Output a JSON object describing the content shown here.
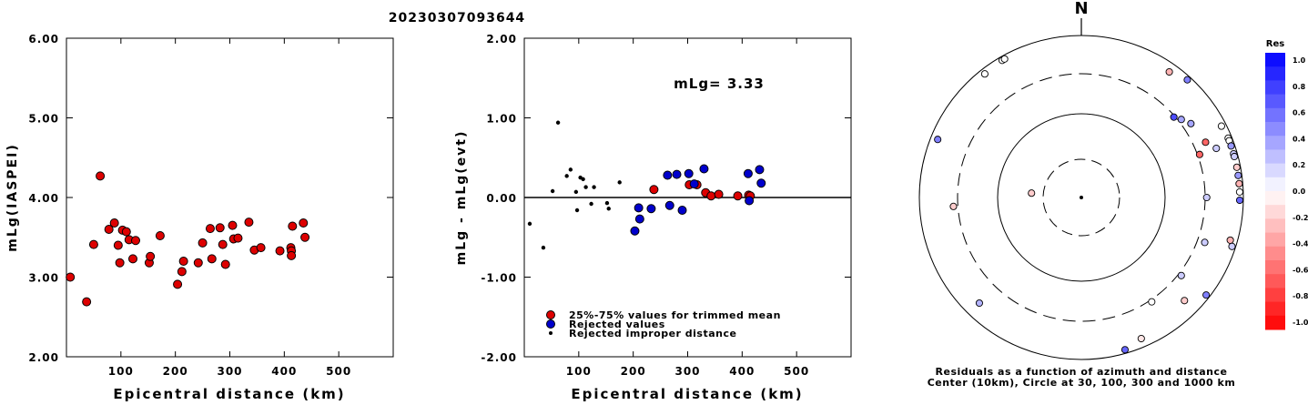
{
  "page_title": "20230307093644",
  "chart_data": [
    {
      "type": "scatter",
      "xlabel": "Epicentral distance (km)",
      "ylabel": "mLg(IASPEI)",
      "xlim": [
        0,
        600
      ],
      "ylim": [
        2.0,
        6.0
      ],
      "x_ticks": [
        "100",
        "200",
        "300",
        "400",
        "500"
      ],
      "y_ticks": [
        "2.00",
        "3.00",
        "4.00",
        "5.00",
        "6.00"
      ],
      "points": [
        [
          7,
          3.0
        ],
        [
          37,
          2.69
        ],
        [
          50,
          3.41
        ],
        [
          62,
          4.27
        ],
        [
          78,
          3.6
        ],
        [
          88,
          3.68
        ],
        [
          95,
          3.4
        ],
        [
          98,
          3.18
        ],
        [
          103,
          3.59
        ],
        [
          110,
          3.57
        ],
        [
          115,
          3.47
        ],
        [
          122,
          3.23
        ],
        [
          127,
          3.46
        ],
        [
          152,
          3.18
        ],
        [
          154,
          3.26
        ],
        [
          172,
          3.52
        ],
        [
          204,
          2.91
        ],
        [
          212,
          3.07
        ],
        [
          215,
          3.2
        ],
        [
          242,
          3.18
        ],
        [
          250,
          3.43
        ],
        [
          264,
          3.61
        ],
        [
          267,
          3.23
        ],
        [
          282,
          3.62
        ],
        [
          287,
          3.41
        ],
        [
          292,
          3.16
        ],
        [
          305,
          3.65
        ],
        [
          307,
          3.48
        ],
        [
          315,
          3.49
        ],
        [
          335,
          3.69
        ],
        [
          345,
          3.34
        ],
        [
          357,
          3.37
        ],
        [
          392,
          3.33
        ],
        [
          412,
          3.37
        ],
        [
          413,
          3.33
        ],
        [
          413,
          3.27
        ],
        [
          415,
          3.64
        ],
        [
          435,
          3.68
        ],
        [
          438,
          3.5
        ]
      ]
    },
    {
      "type": "scatter",
      "xlabel": "Epicentral distance (km)",
      "ylabel": "mLg - mLg(evt)",
      "xlim": [
        0,
        600
      ],
      "ylim": [
        -2.0,
        2.0
      ],
      "x_ticks": [
        "100",
        "200",
        "300",
        "400",
        "500"
      ],
      "y_ticks": [
        "-2.00",
        "-1.00",
        "0.00",
        "1.00",
        "2.00"
      ],
      "annotation": "mLg= 3.33",
      "legend": {
        "placement": "bottom-left",
        "entries": [
          "25%-75% values for trimmed mean",
          "Rejected values",
          "Rejected improper distance"
        ]
      },
      "series": [
        {
          "name": "25%-75% values for trimmed mean",
          "color": "#dd0000",
          "marker": "large-circle",
          "points": [
            [
              238,
              0.1
            ],
            [
              303,
              0.16
            ],
            [
              317,
              0.16
            ],
            [
              333,
              0.06
            ],
            [
              343,
              0.02
            ],
            [
              357,
              0.04
            ],
            [
              392,
              0.02
            ],
            [
              412,
              0.03
            ],
            [
              415,
              0.02
            ]
          ]
        },
        {
          "name": "Rejected values",
          "color": "#0000cc",
          "marker": "large-circle",
          "points": [
            [
              203,
              -0.42
            ],
            [
              210,
              -0.13
            ],
            [
              212,
              -0.27
            ],
            [
              233,
              -0.14
            ],
            [
              263,
              0.28
            ],
            [
              267,
              -0.1
            ],
            [
              280,
              0.29
            ],
            [
              290,
              -0.16
            ],
            [
              302,
              0.3
            ],
            [
              312,
              0.17
            ],
            [
              330,
              0.36
            ],
            [
              411,
              0.3
            ],
            [
              413,
              -0.04
            ],
            [
              432,
              0.35
            ],
            [
              435,
              0.18
            ]
          ]
        },
        {
          "name": "Rejected improper distance",
          "color": "#000000",
          "marker": "small-dot",
          "points": [
            [
              10,
              -0.33
            ],
            [
              35,
              -0.63
            ],
            [
              52,
              0.08
            ],
            [
              62,
              0.94
            ],
            [
              78,
              0.27
            ],
            [
              85,
              0.35
            ],
            [
              95,
              0.07
            ],
            [
              97,
              -0.16
            ],
            [
              103,
              0.25
            ],
            [
              108,
              0.23
            ],
            [
              113,
              0.13
            ],
            [
              123,
              -0.08
            ],
            [
              128,
              0.13
            ],
            [
              152,
              -0.07
            ],
            [
              155,
              -0.14
            ],
            [
              175,
              0.19
            ]
          ]
        }
      ]
    },
    {
      "type": "polar-scatter",
      "north_label": "N",
      "caption": [
        "Residuals as a function of azimuth and distance",
        "Center (10km), Circle at 30, 100, 300 and 1000 km"
      ],
      "colorbar": {
        "title": "Res",
        "min": -1.0,
        "max": 1.0,
        "labels": [
          "1.0",
          "0.8",
          "0.6",
          "0.4",
          "0.2",
          "0.0",
          "-0.2",
          "-0.4",
          "-0.6",
          "-0.8",
          "-1.0"
        ],
        "positive_color": "#0000ff",
        "negative_color": "#ff0000"
      },
      "points": [
        {
          "az": 275,
          "dist_km": 41,
          "res": -0.2
        },
        {
          "az": 266,
          "dist_km": 345,
          "res": -0.2
        },
        {
          "az": 292,
          "dist_km": 800,
          "res": 0.5
        },
        {
          "az": 322,
          "dist_km": 850,
          "res": 0.0
        },
        {
          "az": 330,
          "dist_km": 960,
          "res": 0.0
        },
        {
          "az": 331,
          "dist_km": 1000,
          "res": 0.0
        },
        {
          "az": 35,
          "dist_km": 760,
          "res": -0.3
        },
        {
          "az": 42,
          "dist_km": 900,
          "res": 0.5
        },
        {
          "az": 49,
          "dist_km": 290,
          "res": 0.7
        },
        {
          "az": 52,
          "dist_km": 330,
          "res": 0.35
        },
        {
          "az": 56,
          "dist_km": 390,
          "res": 0.35
        },
        {
          "az": 63,
          "dist_km": 860,
          "res": 0.0
        },
        {
          "az": 66,
          "dist_km": 440,
          "res": -0.6
        },
        {
          "az": 70,
          "dist_km": 320,
          "res": -0.6
        },
        {
          "az": 70,
          "dist_km": 560,
          "res": 0.2
        },
        {
          "az": 68,
          "dist_km": 900,
          "res": 0.0
        },
        {
          "az": 69,
          "dist_km": 1000,
          "res": 0.0
        },
        {
          "az": 71,
          "dist_km": 1000,
          "res": 0.4
        },
        {
          "az": 74,
          "dist_km": 1000,
          "res": 0.2
        },
        {
          "az": 75,
          "dist_km": 900,
          "res": 0.2
        },
        {
          "az": 79,
          "dist_km": 950,
          "res": -0.2
        },
        {
          "az": 82,
          "dist_km": 1050,
          "res": 0.4
        },
        {
          "az": 85,
          "dist_km": 1000,
          "res": -0.3
        },
        {
          "az": 88,
          "dist_km": 1000,
          "res": 0.0
        },
        {
          "az": 91,
          "dist_km": 1000,
          "res": 0.6
        },
        {
          "az": 90,
          "dist_km": 315,
          "res": 0.2
        },
        {
          "az": 110,
          "dist_km": 380,
          "res": 0.2
        },
        {
          "az": 106,
          "dist_km": 800,
          "res": -0.3
        },
        {
          "az": 108,
          "dist_km": 900,
          "res": 0.2
        },
        {
          "az": 128,
          "dist_km": 330,
          "res": 0.2
        },
        {
          "az": 146,
          "dist_km": 320,
          "res": 0.0
        },
        {
          "az": 135,
          "dist_km": 600,
          "res": -0.2
        },
        {
          "az": 128,
          "dist_km": 1000,
          "res": 0.5
        },
        {
          "az": 157,
          "dist_km": 760,
          "res": -0.1
        },
        {
          "az": 164,
          "dist_km": 1050,
          "res": 0.6
        },
        {
          "az": 224,
          "dist_km": 620,
          "res": 0.3
        }
      ]
    }
  ]
}
